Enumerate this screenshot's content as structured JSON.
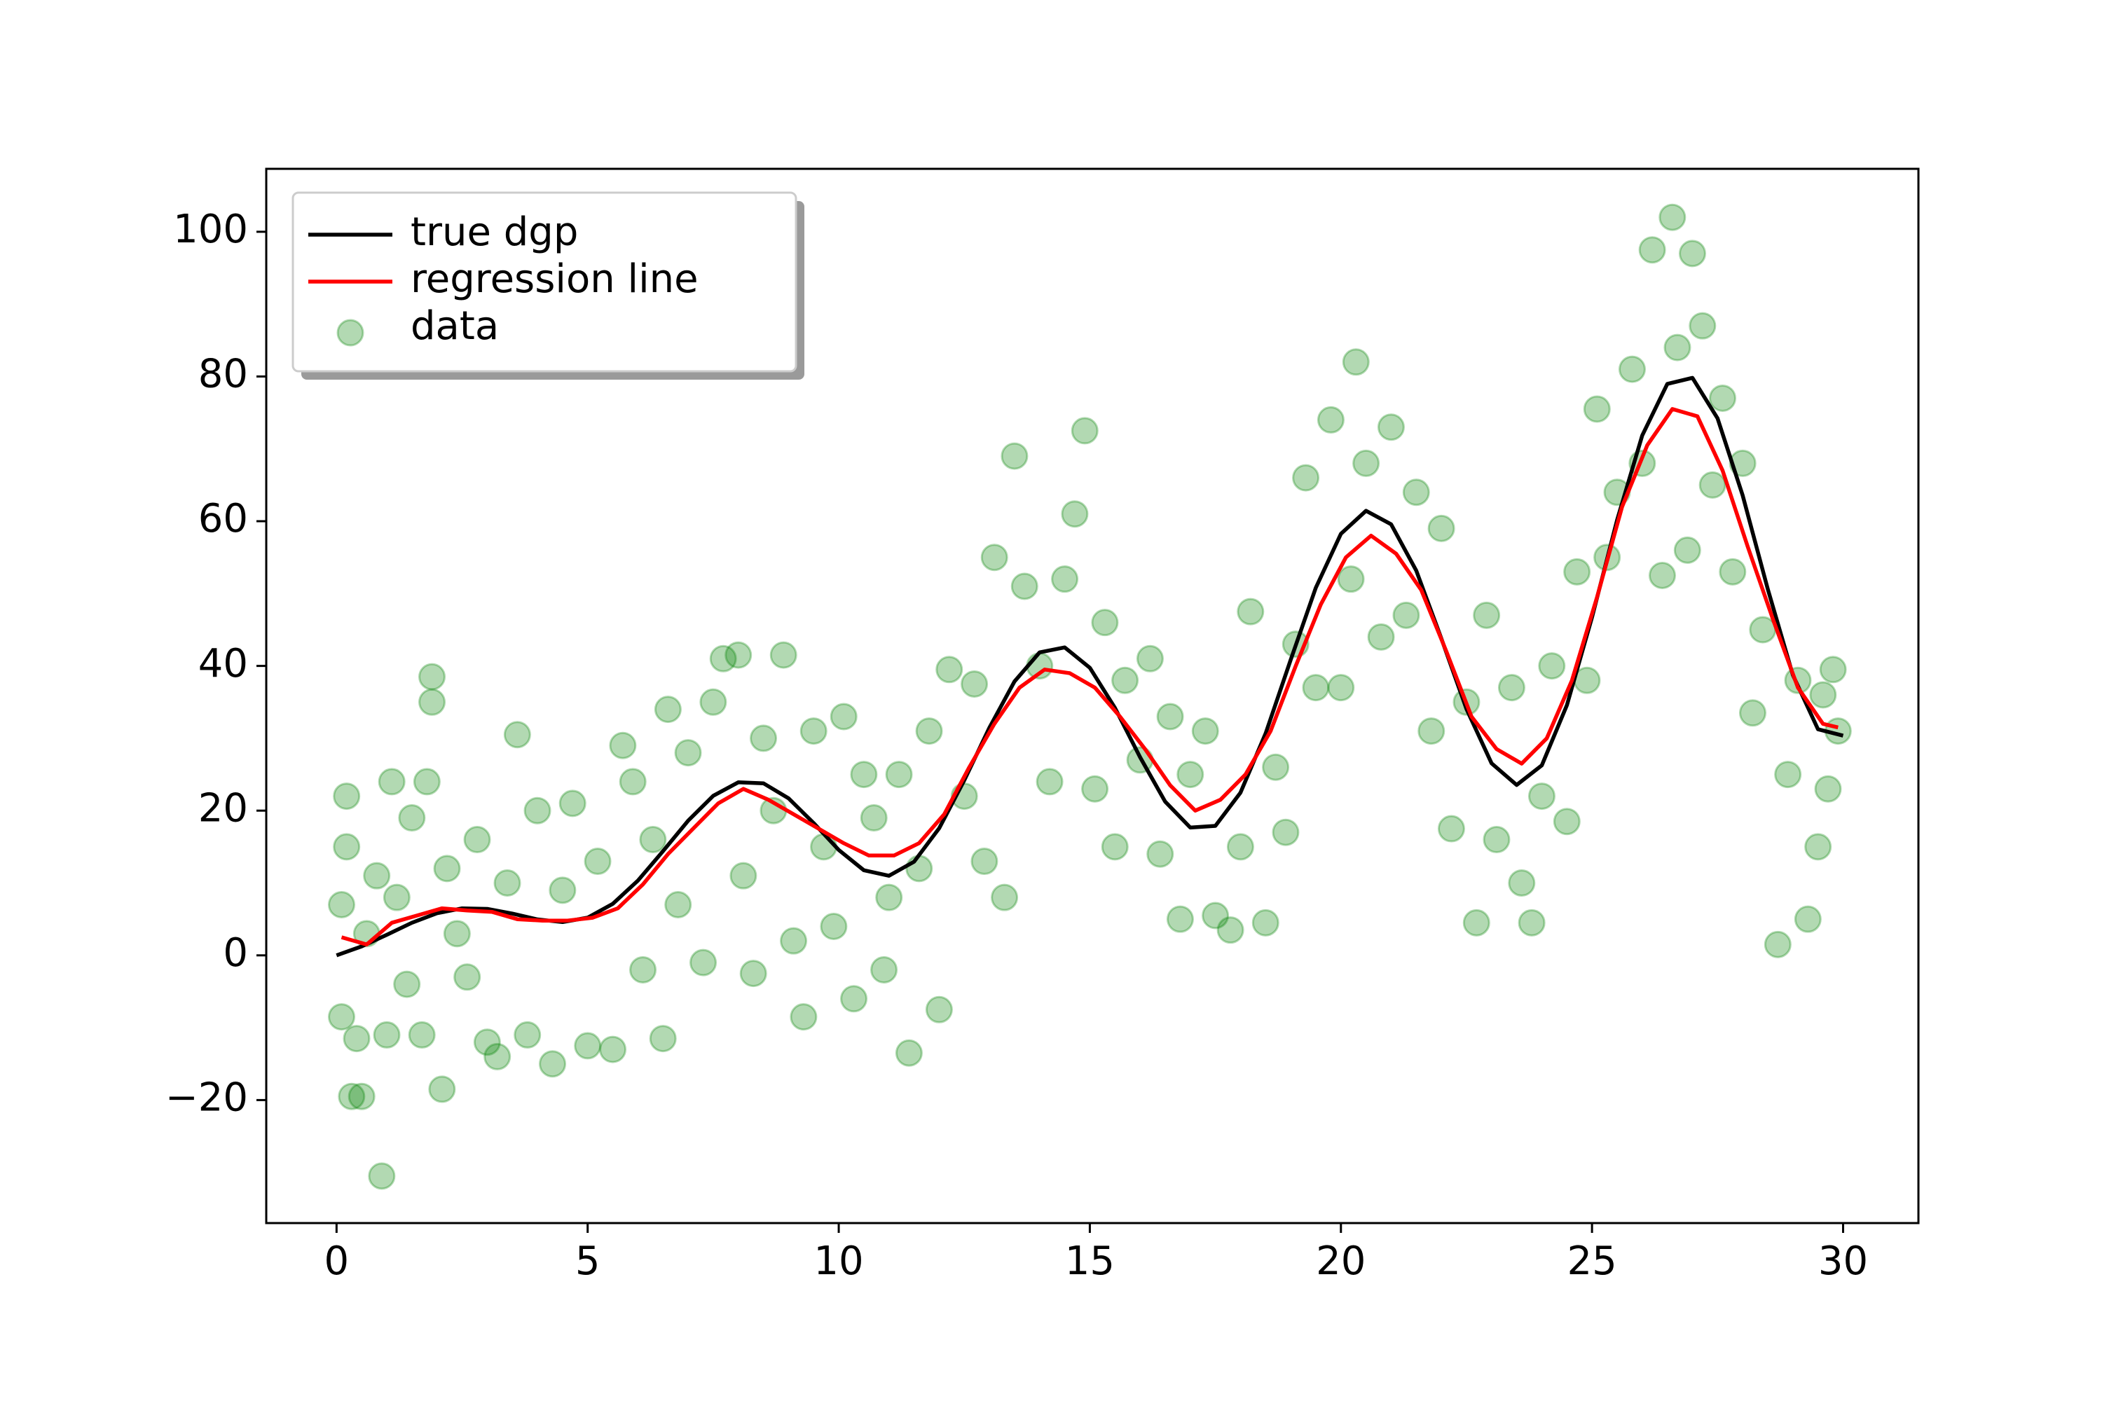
{
  "chart_data": {
    "type": "line",
    "xlim": [
      -1.4,
      31.5
    ],
    "ylim": [
      -37,
      108.7
    ],
    "xticks": [
      0,
      5,
      10,
      15,
      20,
      25,
      30
    ],
    "yticks": [
      {
        "value": -20,
        "label": "−20"
      },
      0,
      20,
      40,
      60,
      80,
      100
    ],
    "legend": "upper left",
    "series": [
      {
        "name": "true dgp",
        "type": "line",
        "color": "#000000",
        "x": [
          0,
          0.5,
          1,
          1.5,
          2,
          2.5,
          3,
          3.5,
          4,
          4.5,
          5,
          5.5,
          6,
          6.5,
          7,
          7.5,
          8,
          8.5,
          9,
          9.5,
          10,
          10.5,
          11,
          11.5,
          12,
          12.5,
          13,
          13.5,
          14,
          14.5,
          15,
          15.5,
          16,
          16.5,
          17,
          17.5,
          18,
          18.5,
          19,
          19.5,
          20,
          20.5,
          21,
          21.5,
          22,
          22.5,
          23,
          23.5,
          24,
          24.5,
          25,
          25.5,
          26,
          26.5,
          27,
          27.5,
          28,
          28.5,
          29,
          29.5,
          30
        ],
        "values": [
          0,
          1.24,
          2.84,
          4.5,
          5.82,
          6.5,
          6.42,
          5.77,
          4.97,
          4.6,
          5.21,
          7.12,
          10.33,
          14.4,
          18.6,
          22.04,
          23.91,
          23.78,
          21.71,
          18.29,
          14.56,
          11.76,
          11,
          12.94,
          17.56,
          24.18,
          31.46,
          37.85,
          41.87,
          42.56,
          39.75,
          34.19,
          27.39,
          21.25,
          17.66,
          17.89,
          22.48,
          30.67,
          40.85,
          50.8,
          58.26,
          61.44,
          59.58,
          53.17,
          43.8,
          34.04,
          26.54,
          23.55,
          26.26,
          34.57,
          46.7,
          60.18,
          71.84,
          78.97,
          79.81,
          74.22,
          63.59,
          50.62,
          38.74,
          31.24,
          30.36
        ]
      },
      {
        "name": "regression line",
        "type": "line",
        "color": "#ff0000",
        "x": [
          0.1,
          0.6,
          1.1,
          1.6,
          2.1,
          2.6,
          3.1,
          3.6,
          4.1,
          4.6,
          5.1,
          5.6,
          6.1,
          6.6,
          7.1,
          7.6,
          8.1,
          8.6,
          9.1,
          9.6,
          10.1,
          10.6,
          11.1,
          11.6,
          12.1,
          12.6,
          13.1,
          13.6,
          14.1,
          14.6,
          15.1,
          15.6,
          16.1,
          16.6,
          17.1,
          17.6,
          18.1,
          18.6,
          19.1,
          19.6,
          20.1,
          20.6,
          21.1,
          21.6,
          22.1,
          22.6,
          23.1,
          23.6,
          24.1,
          24.6,
          25.1,
          25.6,
          26.1,
          26.6,
          27.1,
          27.6,
          28.1,
          28.6,
          29.1,
          29.6,
          29.9
        ],
        "values": [
          2.5,
          1.5,
          4.5,
          5.5,
          6.5,
          6.2,
          6,
          5,
          4.8,
          4.8,
          5.2,
          6.5,
          9.8,
          14,
          17.5,
          21,
          23,
          21.5,
          19.5,
          17.5,
          15.5,
          13.8,
          13.8,
          15.5,
          19.5,
          26,
          32,
          37,
          39.5,
          39,
          37,
          33,
          28.5,
          23.5,
          20,
          21.5,
          25,
          31,
          40,
          48.5,
          55,
          58,
          55.5,
          50.5,
          42,
          33,
          28.5,
          26.5,
          30,
          38,
          49.5,
          62,
          70.5,
          75.5,
          74.5,
          67,
          56.5,
          46.5,
          37,
          32,
          31.5
        ]
      },
      {
        "name": "data",
        "type": "scatter",
        "color": "#008000",
        "x": [
          0.1,
          0.1,
          0.2,
          0.2,
          0.3,
          0.4,
          0.5,
          0.6,
          0.8,
          0.9,
          1.0,
          1.1,
          1.2,
          1.4,
          1.5,
          1.7,
          1.8,
          1.9,
          1.9,
          2.1,
          2.2,
          2.4,
          2.6,
          2.8,
          3.0,
          3.2,
          3.4,
          3.6,
          3.8,
          4.0,
          4.3,
          4.5,
          4.7,
          5.0,
          5.2,
          5.5,
          5.7,
          5.9,
          6.1,
          6.3,
          6.5,
          6.6,
          6.8,
          7.0,
          7.3,
          7.5,
          7.7,
          8.0,
          8.1,
          8.3,
          8.5,
          8.7,
          8.9,
          9.1,
          9.3,
          9.5,
          9.7,
          9.9,
          10.1,
          10.3,
          10.5,
          10.7,
          10.9,
          11.0,
          11.2,
          11.4,
          11.6,
          11.8,
          12.0,
          12.2,
          12.5,
          12.7,
          12.9,
          13.1,
          13.3,
          13.5,
          13.7,
          14.0,
          14.2,
          14.5,
          14.7,
          14.9,
          15.1,
          15.3,
          15.5,
          15.7,
          16.0,
          16.2,
          16.4,
          16.6,
          16.8,
          17.0,
          17.3,
          17.5,
          17.8,
          18.0,
          18.2,
          18.5,
          18.7,
          18.9,
          19.1,
          19.3,
          19.5,
          19.8,
          20.0,
          20.2,
          20.3,
          20.5,
          20.8,
          21.0,
          21.3,
          21.5,
          21.8,
          22.0,
          22.2,
          22.5,
          22.7,
          22.9,
          23.1,
          23.4,
          23.6,
          23.8,
          24.0,
          24.2,
          24.5,
          24.7,
          24.9,
          25.1,
          25.3,
          25.5,
          25.8,
          26.0,
          26.2,
          26.4,
          26.6,
          26.7,
          26.9,
          27.0,
          27.2,
          27.4,
          27.6,
          27.8,
          28.0,
          28.2,
          28.4,
          28.7,
          28.9,
          29.1,
          29.3,
          29.5,
          29.6,
          29.7,
          29.8,
          29.9
        ],
        "values": [
          7,
          -8.5,
          22,
          15,
          -19.5,
          -11.5,
          -19.5,
          3,
          11,
          -30.5,
          -11,
          24,
          8,
          -4,
          19,
          -11,
          24,
          38.5,
          35,
          -18.5,
          12,
          3,
          -3,
          16,
          -12,
          -14,
          10,
          30.5,
          -11,
          20,
          -15,
          9,
          21,
          -12.5,
          13,
          -13,
          29,
          24,
          -2,
          16,
          -11.5,
          34,
          7,
          28,
          -1,
          35,
          41,
          41.5,
          11,
          -2.5,
          30,
          20,
          41.5,
          2,
          -8.5,
          31,
          15,
          4,
          33,
          -6,
          25,
          19,
          -2,
          8,
          25,
          -13.5,
          12,
          31,
          -7.5,
          39.5,
          22,
          37.5,
          13,
          55,
          8,
          69,
          51,
          40,
          24,
          52,
          61,
          72.5,
          23,
          46,
          15,
          38,
          27,
          41,
          14,
          33,
          5,
          25,
          31,
          5.5,
          3.5,
          15,
          47.5,
          4.5,
          26,
          17,
          43,
          66,
          37,
          74,
          37,
          52,
          82,
          68,
          44,
          73,
          47,
          64,
          31,
          59,
          17.5,
          35,
          4.5,
          47,
          16,
          37,
          10,
          4.5,
          22,
          40,
          18.5,
          53,
          38,
          75.5,
          55,
          64,
          81,
          68,
          97.5,
          52.5,
          102,
          84,
          56,
          97,
          87,
          65,
          77,
          53,
          68,
          33.5,
          45,
          1.5,
          25,
          38,
          5,
          15,
          36,
          23,
          39.5,
          31
        ]
      }
    ]
  }
}
